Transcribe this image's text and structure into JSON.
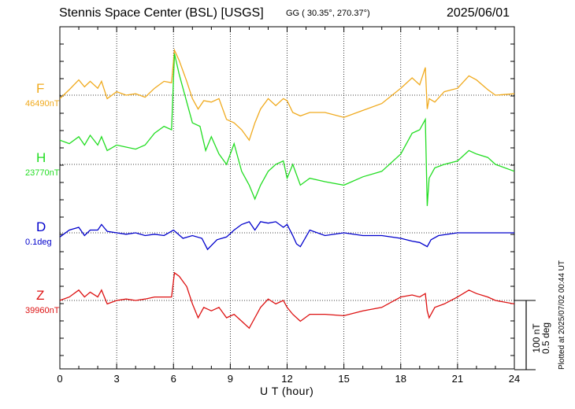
{
  "title": {
    "station": "Stennis Space Center (BSL)  [USGS]",
    "coords": "GG ( 30.35°, 270.37°)",
    "date": "2025/06/01"
  },
  "side_note": "Plotted at 2025/07/02 00:44 UT",
  "scale_bar": {
    "line1": "100 nT",
    "line2": "0.5 deg"
  },
  "colors": {
    "F": "#f0aa1e",
    "H": "#22dd22",
    "D": "#0000cc",
    "Z": "#dd1111"
  },
  "chart_data": {
    "type": "line",
    "title": "Stennis Space Center (BSL)  [USGS]",
    "xlabel": "U T (hour)",
    "ylabel": "",
    "xlim": [
      0,
      24
    ],
    "x_ticks": [
      "0",
      "3",
      "6",
      "9",
      "12",
      "15",
      "18",
      "21",
      "24"
    ],
    "grid": true,
    "scale": "100 nT / 0.5 deg per scale bar",
    "series": [
      {
        "name": "F",
        "base_label": "46490nT",
        "unit": "nT",
        "color": "#f0aa1e",
        "x": [
          0,
          0.5,
          1,
          1.3,
          1.6,
          2,
          2.2,
          2.5,
          3,
          3.5,
          4,
          4.5,
          5,
          5.5,
          5.9,
          6.05,
          6.3,
          6.7,
          7,
          7.3,
          7.6,
          8,
          8.4,
          8.8,
          9.2,
          9.6,
          10,
          10.3,
          10.6,
          11,
          11.4,
          11.8,
          12,
          12.3,
          12.7,
          13.2,
          14,
          15,
          16,
          17,
          18,
          18.6,
          19,
          19.3,
          19.4,
          19.5,
          19.8,
          20.3,
          21,
          21.6,
          22,
          22.6,
          23,
          24
        ],
        "y": [
          -5,
          8,
          22,
          12,
          20,
          10,
          20,
          -5,
          5,
          0,
          2,
          -3,
          10,
          20,
          18,
          65,
          50,
          20,
          -5,
          -20,
          -8,
          -10,
          -5,
          -35,
          -40,
          -50,
          -65,
          -40,
          -20,
          -5,
          -15,
          -5,
          -8,
          -25,
          -30,
          -25,
          -25,
          -32,
          -22,
          -12,
          10,
          25,
          15,
          40,
          -20,
          -5,
          -10,
          5,
          10,
          28,
          22,
          8,
          0,
          2
        ]
      },
      {
        "name": "H",
        "base_label": "23770nT",
        "unit": "nT",
        "color": "#22dd22",
        "x": [
          0,
          0.5,
          1,
          1.3,
          1.6,
          2,
          2.2,
          2.5,
          3,
          3.5,
          4,
          4.5,
          5,
          5.5,
          5.9,
          6.05,
          6.3,
          6.7,
          7,
          7.4,
          7.7,
          8,
          8.4,
          8.8,
          9.2,
          9.6,
          10,
          10.3,
          10.6,
          11,
          11.4,
          11.8,
          12,
          12.3,
          12.7,
          13.2,
          14,
          15,
          16,
          17,
          18,
          18.6,
          19,
          19.3,
          19.4,
          19.5,
          19.8,
          20.3,
          21,
          21.6,
          22,
          22.6,
          23,
          24
        ],
        "y": [
          35,
          30,
          40,
          28,
          42,
          28,
          40,
          20,
          28,
          25,
          22,
          28,
          45,
          55,
          50,
          160,
          130,
          90,
          60,
          55,
          20,
          40,
          15,
          0,
          30,
          -10,
          -30,
          -50,
          -30,
          -10,
          0,
          5,
          -20,
          0,
          -30,
          -20,
          -25,
          -30,
          -18,
          -10,
          15,
          45,
          50,
          65,
          -60,
          -20,
          -5,
          0,
          5,
          20,
          15,
          10,
          0,
          -10
        ]
      },
      {
        "name": "D",
        "base_label": "0.1deg",
        "unit": "deg",
        "color": "#0000cc",
        "x": [
          0,
          0.5,
          1,
          1.3,
          1.6,
          2,
          2.2,
          2.5,
          3,
          3.5,
          4,
          4.5,
          5,
          5.5,
          6,
          6.5,
          7,
          7.5,
          7.8,
          8.3,
          8.8,
          9.2,
          9.6,
          10,
          10.3,
          10.6,
          11,
          11.4,
          11.8,
          12,
          12.3,
          12.5,
          12.7,
          13.2,
          14,
          15,
          16,
          17,
          18,
          18.6,
          19,
          19.4,
          19.6,
          20,
          21,
          22,
          23,
          24
        ],
        "y": [
          -0.03,
          0.02,
          0.04,
          -0.02,
          0.02,
          0.02,
          0.06,
          0.01,
          0,
          -0.01,
          0,
          -0.02,
          -0.01,
          -0.02,
          0.02,
          -0.04,
          -0.02,
          -0.04,
          -0.12,
          -0.05,
          -0.03,
          0.02,
          0.06,
          0.08,
          0.02,
          0.08,
          0.07,
          0.08,
          0.04,
          0.06,
          -0.02,
          -0.08,
          -0.1,
          0.02,
          -0.02,
          0,
          -0.02,
          -0.02,
          -0.04,
          -0.06,
          -0.07,
          -0.1,
          -0.05,
          -0.02,
          0,
          0,
          0,
          0
        ]
      },
      {
        "name": "Z",
        "base_label": "39960nT",
        "unit": "nT",
        "color": "#dd1111",
        "x": [
          0,
          0.5,
          1,
          1.3,
          1.6,
          2,
          2.2,
          2.5,
          3,
          3.5,
          4,
          4.5,
          5,
          5.5,
          5.9,
          6.05,
          6.3,
          6.7,
          7,
          7.3,
          7.6,
          8,
          8.4,
          8.8,
          9.2,
          9.6,
          10,
          10.3,
          10.6,
          11,
          11.4,
          11.8,
          12,
          12.3,
          12.7,
          13.2,
          14,
          15,
          16,
          17,
          18,
          18.6,
          19,
          19.3,
          19.4,
          19.5,
          19.8,
          20.3,
          21,
          21.6,
          22,
          22.6,
          23,
          24
        ],
        "y": [
          0,
          5,
          15,
          5,
          12,
          5,
          15,
          -5,
          0,
          2,
          0,
          2,
          5,
          5,
          5,
          40,
          35,
          20,
          -5,
          -25,
          -10,
          -15,
          -10,
          -25,
          -20,
          -30,
          -40,
          -25,
          -10,
          2,
          -5,
          0,
          -10,
          -20,
          -30,
          -20,
          -20,
          -22,
          -15,
          -10,
          5,
          8,
          5,
          10,
          -15,
          -25,
          -10,
          -5,
          5,
          15,
          10,
          5,
          0,
          -5
        ]
      }
    ]
  }
}
